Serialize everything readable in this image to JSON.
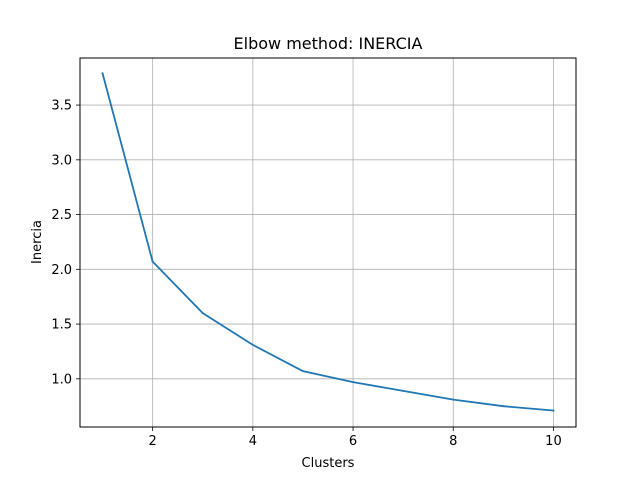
{
  "chart_data": {
    "type": "line",
    "title": "Elbow method: INERCIA",
    "xlabel": "Clusters",
    "ylabel": "Inercia",
    "grid": true,
    "xlim": [
      0.55,
      10.45
    ],
    "ylim": [
      0.56,
      3.93
    ],
    "xticks": [
      2,
      4,
      6,
      8,
      10
    ],
    "yticks": [
      1.0,
      1.5,
      2.0,
      2.5,
      3.0,
      3.5
    ],
    "ytick_labels": [
      "1.0",
      "1.5",
      "2.0",
      "2.5",
      "3.0",
      "3.5"
    ],
    "line_color": "#1f77b4",
    "series": [
      {
        "name": "Inercia",
        "x": [
          1,
          2,
          3,
          4,
          5,
          6,
          7,
          8,
          9,
          10
        ],
        "y": [
          3.79,
          2.07,
          1.6,
          1.31,
          1.07,
          0.97,
          0.89,
          0.81,
          0.75,
          0.71
        ]
      }
    ]
  }
}
